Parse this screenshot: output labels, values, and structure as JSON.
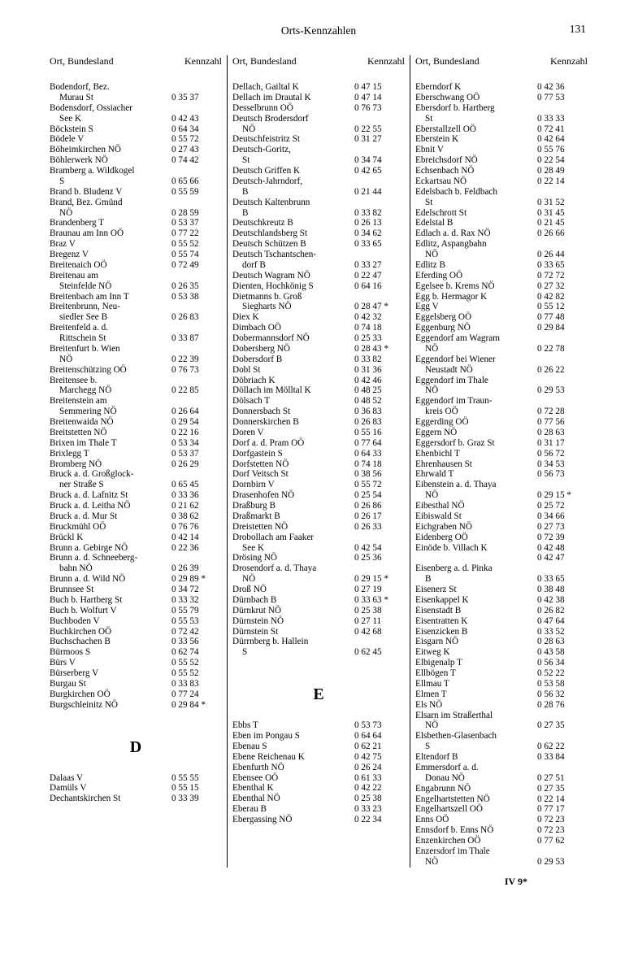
{
  "title": "Orts-Kennzahlen",
  "pageNumber": "131",
  "colHeader": {
    "left": "Ort, Bundesland",
    "right": "Kennzahl"
  },
  "footer": "IV 9*",
  "col1": [
    {
      "n": "Bodendorf, Bez.",
      "k": ""
    },
    {
      "n": "Murau St",
      "k": "0 35 37",
      "c": 1
    },
    {
      "n": "Bodensdorf, Ossiacher",
      "k": ""
    },
    {
      "n": "See K",
      "k": "0 42 43",
      "c": 1
    },
    {
      "n": "Böckstein S",
      "k": "0 64 34"
    },
    {
      "n": "Bödele V",
      "k": "0 55 72"
    },
    {
      "n": "Böheimkirchen NÖ",
      "k": "0 27 43"
    },
    {
      "n": "Böhlerwerk NÖ",
      "k": "0 74 42"
    },
    {
      "n": "Bramberg a. Wildkogel",
      "k": ""
    },
    {
      "n": "S",
      "k": "0 65 66",
      "c": 1
    },
    {
      "n": "Brand b. Bludenz V",
      "k": "0 55 59"
    },
    {
      "n": "Brand, Bez. Gmünd",
      "k": ""
    },
    {
      "n": "NÖ",
      "k": "0 28 59",
      "c": 1
    },
    {
      "n": "Brandenberg T",
      "k": "0 53 37"
    },
    {
      "n": "Braunau am Inn OÖ",
      "k": "0 77 22"
    },
    {
      "n": "Braz V",
      "k": "0 55 52"
    },
    {
      "n": "Bregenz V",
      "k": "0 55 74"
    },
    {
      "n": "Breitenaich OÖ",
      "k": "0 72 49"
    },
    {
      "n": "Breitenau am",
      "k": ""
    },
    {
      "n": "Steinfelde NÖ",
      "k": "0 26 35",
      "c": 1
    },
    {
      "n": "Breitenbach am Inn T",
      "k": "0 53 38"
    },
    {
      "n": "Breitenbrunn, Neu-",
      "k": ""
    },
    {
      "n": "siedler See B",
      "k": "0 26 83",
      "c": 1
    },
    {
      "n": "Breitenfeld a. d.",
      "k": ""
    },
    {
      "n": "Rittschein St",
      "k": "0 33 87",
      "c": 1
    },
    {
      "n": "Breitenfurt b. Wien",
      "k": ""
    },
    {
      "n": "NÖ",
      "k": "0 22 39",
      "c": 1
    },
    {
      "n": "Breitenschützing OÖ",
      "k": "0 76 73"
    },
    {
      "n": "Breitensee b.",
      "k": ""
    },
    {
      "n": "Marchegg NÖ",
      "k": "0 22 85",
      "c": 1
    },
    {
      "n": "Breitenstein am",
      "k": ""
    },
    {
      "n": "Semmering NÖ",
      "k": "0 26 64",
      "c": 1
    },
    {
      "n": "Breitenwaida NÖ",
      "k": "0 29 54"
    },
    {
      "n": "Breitstetten NÖ",
      "k": "0 22 16"
    },
    {
      "n": "Brixen im Thale T",
      "k": "0 53 34"
    },
    {
      "n": "Brixlegg T",
      "k": "0 53 37"
    },
    {
      "n": "Bromberg NÖ",
      "k": "0 26 29"
    },
    {
      "n": "Bruck a. d. Großglock-",
      "k": ""
    },
    {
      "n": "ner Straße S",
      "k": "0 65 45",
      "c": 1
    },
    {
      "n": "Bruck a. d. Lafnitz St",
      "k": "0 33 36"
    },
    {
      "n": "Bruck a. d. Leitha NÖ",
      "k": "0 21 62"
    },
    {
      "n": "Bruck a. d. Mur St",
      "k": "0 38 62"
    },
    {
      "n": "Bruckmühl OÖ",
      "k": "0 76 76"
    },
    {
      "n": "Brückl K",
      "k": "0 42 14"
    },
    {
      "n": "Brunn a. Gebirge NÖ",
      "k": "0 22 36"
    },
    {
      "n": "Brunn a. d. Schneeberg-",
      "k": ""
    },
    {
      "n": "bahn NÖ",
      "k": "0 26 39",
      "c": 1
    },
    {
      "n": "Brunn a. d. Wild NÖ",
      "k": "0 29 89 *"
    },
    {
      "n": "Brunnsee St",
      "k": "0 34 72"
    },
    {
      "n": "Buch b. Hartberg St",
      "k": "0 33 32"
    },
    {
      "n": "Buch b. Wolfurt V",
      "k": "0 55 79"
    },
    {
      "n": "Buchboden V",
      "k": "0 55 53"
    },
    {
      "n": "Buchkirchen OÖ",
      "k": "0 72 42"
    },
    {
      "n": "Buchschachen B",
      "k": "0 33 56"
    },
    {
      "n": "Bürmoos S",
      "k": "0 62 74"
    },
    {
      "n": "Bürs V",
      "k": "0 55 52"
    },
    {
      "n": "Bürserberg V",
      "k": "0 55 52"
    },
    {
      "n": "Burgau St",
      "k": "0 33 83"
    },
    {
      "n": "Burgkirchen OÖ",
      "k": "0 77 24"
    },
    {
      "n": "Burgschleinitz NÖ",
      "k": "0 29 84 *"
    }
  ],
  "col1Letter": "D",
  "col1b": [
    {
      "n": "Dalaas V",
      "k": "0 55 55"
    },
    {
      "n": "Damüls V",
      "k": "0 55 15"
    },
    {
      "n": "Dechantskirchen St",
      "k": "0 33 39"
    }
  ],
  "col2": [
    {
      "n": "Dellach, Gailtal K",
      "k": "0 47 15"
    },
    {
      "n": "Dellach im Drautal K",
      "k": "0 47 14"
    },
    {
      "n": "Desselbrunn OÖ",
      "k": "0 76 73"
    },
    {
      "n": "Deutsch Brodersdorf",
      "k": ""
    },
    {
      "n": "NÖ",
      "k": "0 22 55",
      "c": 1
    },
    {
      "n": "Deutschfeistritz St",
      "k": "0 31 27"
    },
    {
      "n": "Deutsch-Goritz,",
      "k": ""
    },
    {
      "n": "St",
      "k": "0 34 74",
      "c": 1
    },
    {
      "n": "Deutsch Griffen K",
      "k": "0 42 65"
    },
    {
      "n": "Deutsch-Jahrndorf,",
      "k": ""
    },
    {
      "n": "B",
      "k": "0 21 44",
      "c": 1
    },
    {
      "n": "Deutsch Kaltenbrunn",
      "k": ""
    },
    {
      "n": "B",
      "k": "0 33 82",
      "c": 1
    },
    {
      "n": "Deutschkreutz B",
      "k": "0 26 13"
    },
    {
      "n": "Deutschlandsberg St",
      "k": "0 34 62"
    },
    {
      "n": "Deutsch Schützen B",
      "k": "0 33 65"
    },
    {
      "n": "Deutsch Tschantschen-",
      "k": ""
    },
    {
      "n": "dorf B",
      "k": "0 33 27",
      "c": 1
    },
    {
      "n": "Deutsch Wagram NÖ",
      "k": "0 22 47"
    },
    {
      "n": "Dienten, Hochkönig S",
      "k": "0 64 16"
    },
    {
      "n": "Dietmanns b. Groß",
      "k": ""
    },
    {
      "n": "Siegharts NÖ",
      "k": "0 28 47 *",
      "c": 1
    },
    {
      "n": "Diex K",
      "k": "0 42 32"
    },
    {
      "n": "Dimbach OÖ",
      "k": "0 74 18"
    },
    {
      "n": "Dobermannsdorf NÖ",
      "k": "0 25 33"
    },
    {
      "n": "Dobersberg NÖ",
      "k": "0 28 43 *"
    },
    {
      "n": "Dobersdorf B",
      "k": "0 33 82"
    },
    {
      "n": "Dobl St",
      "k": "0 31 36"
    },
    {
      "n": "Döbriach K",
      "k": "0 42 46"
    },
    {
      "n": "Döllach im Mölltal K",
      "k": "0 48 25"
    },
    {
      "n": "Dölsach T",
      "k": "0 48 52"
    },
    {
      "n": "Donnersbach St",
      "k": "0 36 83"
    },
    {
      "n": "Donnerskirchen B",
      "k": "0 26 83"
    },
    {
      "n": "Doren V",
      "k": "0 55 16"
    },
    {
      "n": "Dorf a. d. Pram OÖ",
      "k": "0 77 64"
    },
    {
      "n": "Dorfgastein S",
      "k": "0 64 33"
    },
    {
      "n": "Dorfstetten NÖ",
      "k": "0 74 18"
    },
    {
      "n": "Dorf Veitsch St",
      "k": "0 38 56"
    },
    {
      "n": "Dornbirn V",
      "k": "0 55 72"
    },
    {
      "n": "Drasenhofen NÖ",
      "k": "0 25 54"
    },
    {
      "n": "Draßburg B",
      "k": "0 26 86"
    },
    {
      "n": "Draßmarkt B",
      "k": "0 26 17"
    },
    {
      "n": "Dreistetten NÖ",
      "k": "0 26 33"
    },
    {
      "n": "Drobollach am Faaker",
      "k": ""
    },
    {
      "n": "See K",
      "k": "0 42 54",
      "c": 1
    },
    {
      "n": "Drösing NÖ",
      "k": "0 25 36"
    },
    {
      "n": "Drosendorf a. d. Thaya",
      "k": ""
    },
    {
      "n": "NÖ",
      "k": "0 29 15 *",
      "c": 1
    },
    {
      "n": "Droß NÖ",
      "k": "0 27 19"
    },
    {
      "n": "Dürnbach B",
      "k": "0 33 63 *"
    },
    {
      "n": "Dürnkrut NÖ",
      "k": "0 25 38"
    },
    {
      "n": "Dürnstein NÖ",
      "k": "0 27 11"
    },
    {
      "n": "Dürnstein St",
      "k": "0 42 68"
    },
    {
      "n": "Dürrnberg b. Hallein",
      "k": ""
    },
    {
      "n": "S",
      "k": "0 62 45",
      "c": 1
    }
  ],
  "col2Letter": "E",
  "col2b": [
    {
      "n": "Ebbs T",
      "k": "0 53 73"
    },
    {
      "n": "Eben im Pongau S",
      "k": "0 64 64"
    },
    {
      "n": "Ebenau S",
      "k": "0 62 21"
    },
    {
      "n": "Ebene Reichenau K",
      "k": "0 42 75"
    },
    {
      "n": "Ebenfurth NÖ",
      "k": "0 26 24"
    },
    {
      "n": "Ebensee OÖ",
      "k": "0 61 33"
    },
    {
      "n": "Ebenthal K",
      "k": "0 42 22"
    },
    {
      "n": "Ebenthal NÖ",
      "k": "0 25 38"
    },
    {
      "n": "Eberau B",
      "k": "0 33 23"
    },
    {
      "n": "Ebergassing NÖ",
      "k": "0 22 34"
    }
  ],
  "col3": [
    {
      "n": "Eberndorf K",
      "k": "0 42 36"
    },
    {
      "n": "Eberschwang OÖ",
      "k": "0 77 53"
    },
    {
      "n": "Ebersdorf b. Hartberg",
      "k": ""
    },
    {
      "n": "St",
      "k": "0 33 33",
      "c": 1
    },
    {
      "n": "Eberstallzell OÖ",
      "k": "0 72 41"
    },
    {
      "n": "Eberstein K",
      "k": "0 42 64"
    },
    {
      "n": "Ebnit V",
      "k": "0 55 76"
    },
    {
      "n": "Ebreichsdorf NÖ",
      "k": "0 22 54"
    },
    {
      "n": "Echsenbach NÖ",
      "k": "0 28 49"
    },
    {
      "n": "Eckartsau NÖ",
      "k": "0 22 14"
    },
    {
      "n": "Edelsbach b. Feldbach",
      "k": ""
    },
    {
      "n": "St",
      "k": "0 31 52",
      "c": 1
    },
    {
      "n": "Edelschrott St",
      "k": "0 31 45"
    },
    {
      "n": "Edelstal B",
      "k": "0 21 45"
    },
    {
      "n": "Edlach a. d. Rax NÖ",
      "k": "0 26 66"
    },
    {
      "n": "Edlitz, Aspangbahn",
      "k": ""
    },
    {
      "n": "NÖ",
      "k": "0 26 44",
      "c": 1
    },
    {
      "n": "Edlitz B",
      "k": "0 33 65"
    },
    {
      "n": "Eferding OÖ",
      "k": "0 72 72"
    },
    {
      "n": "Egelsee b. Krems NÖ",
      "k": "0 27 32"
    },
    {
      "n": "Egg b. Hermagor K",
      "k": "0 42 82"
    },
    {
      "n": "Egg V",
      "k": "0 55 12"
    },
    {
      "n": "Eggelsberg OÖ",
      "k": "0 77 48"
    },
    {
      "n": "Eggenburg NÖ",
      "k": "0 29 84"
    },
    {
      "n": "Eggendorf am Wagram",
      "k": ""
    },
    {
      "n": "NÖ",
      "k": "0 22 78",
      "c": 1
    },
    {
      "n": "Eggendorf bei Wiener",
      "k": ""
    },
    {
      "n": "Neustadt NÖ",
      "k": "0 26 22",
      "c": 1
    },
    {
      "n": "Eggendorf im Thale",
      "k": ""
    },
    {
      "n": "NÖ",
      "k": "0 29 53",
      "c": 1
    },
    {
      "n": "Eggendorf im Traun-",
      "k": ""
    },
    {
      "n": "kreis OÖ",
      "k": "0 72 28",
      "c": 1
    },
    {
      "n": "Eggerding OÖ",
      "k": "0 77 56"
    },
    {
      "n": "Eggern NÖ",
      "k": "0 28 63"
    },
    {
      "n": "Eggersdorf b. Graz St",
      "k": "0 31 17"
    },
    {
      "n": "Ehenbichl T",
      "k": "0 56 72"
    },
    {
      "n": "Ehrenhausen St",
      "k": "0 34 53"
    },
    {
      "n": "Ehrwald T",
      "k": "0 56 73"
    },
    {
      "n": "Eibenstein a. d. Thaya",
      "k": ""
    },
    {
      "n": "NÖ",
      "k": "0 29 15 *",
      "c": 1
    },
    {
      "n": "Eibesthal NÖ",
      "k": "0 25 72"
    },
    {
      "n": "Eibiswald St",
      "k": "0 34 66"
    },
    {
      "n": "Eichgraben NÖ",
      "k": "0 27 73"
    },
    {
      "n": "Eidenberg OÖ",
      "k": "0 72 39"
    },
    {
      "n": "Einöde b. Villach K",
      "k": "0 42 48"
    },
    {
      "n": "",
      "k": "0 42 47"
    },
    {
      "n": "Eisenberg a. d. Pinka",
      "k": ""
    },
    {
      "n": "B",
      "k": "0 33 65",
      "c": 1
    },
    {
      "n": "Eisenerz St",
      "k": "0 38 48"
    },
    {
      "n": "Eisenkappel K",
      "k": "0 42 38"
    },
    {
      "n": "Eisenstadt B",
      "k": "0 26 82"
    },
    {
      "n": "Eisentratten K",
      "k": "0 47 64"
    },
    {
      "n": "Eisenzicken B",
      "k": "0 33 52"
    },
    {
      "n": "Eisgarn NÖ",
      "k": "0 28 63"
    },
    {
      "n": "Eitweg K",
      "k": "0 43 58"
    },
    {
      "n": "Elbigenalp T",
      "k": "0 56 34"
    },
    {
      "n": "Ellbögen T",
      "k": "0 52 22"
    },
    {
      "n": "Ellmau T",
      "k": "0 53 58"
    },
    {
      "n": "Elmen T",
      "k": "0 56 32"
    },
    {
      "n": "Els NÖ",
      "k": "0 28 76"
    },
    {
      "n": "Elsarn im Straßerthal",
      "k": ""
    },
    {
      "n": "NÖ",
      "k": "0 27 35",
      "c": 1
    },
    {
      "n": "Elsbethen-Glasenbach",
      "k": ""
    },
    {
      "n": "S",
      "k": "0 62 22",
      "c": 1
    },
    {
      "n": "Eltendorf B",
      "k": "0 33 84"
    },
    {
      "n": "Emmersdorf a. d.",
      "k": ""
    },
    {
      "n": "Donau NÖ",
      "k": "0 27 51",
      "c": 1
    },
    {
      "n": "Engabrunn NÖ",
      "k": "0 27 35"
    },
    {
      "n": "Engelhartstetten NÖ",
      "k": "0 22 14"
    },
    {
      "n": "Engelhartszell OÖ",
      "k": "0 77 17"
    },
    {
      "n": "Enns OÖ",
      "k": "0 72 23"
    },
    {
      "n": "Ennsdorf b. Enns NÖ",
      "k": "0 72 23"
    },
    {
      "n": "Enzenkirchen OÖ",
      "k": "0 77 62"
    },
    {
      "n": "Enzersdorf im Thale",
      "k": ""
    },
    {
      "n": "NÖ",
      "k": "0 29 53",
      "c": 1
    }
  ]
}
